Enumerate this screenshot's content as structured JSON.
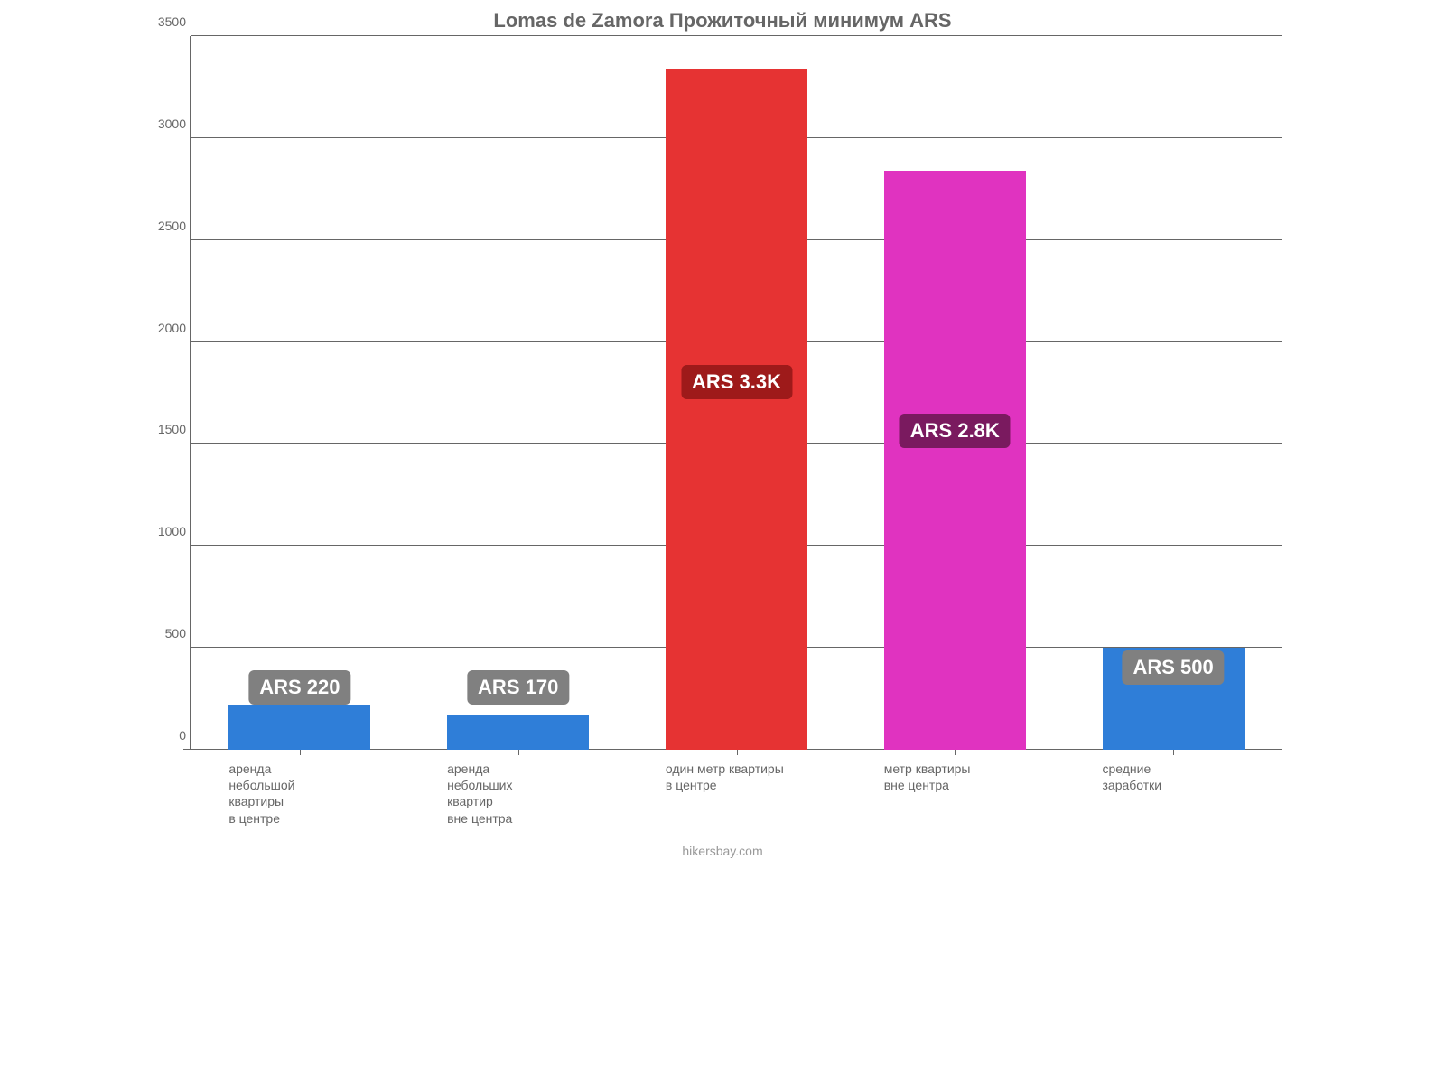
{
  "chart": {
    "type": "bar",
    "title": "Lomas de Zamora Прожиточный минимум ARS",
    "title_fontsize": 22,
    "title_color": "#666666",
    "background_color": "#ffffff",
    "attribution": "hikersbay.com",
    "attribution_fontsize": 14,
    "attribution_color": "#999999",
    "ylim": [
      0,
      3500
    ],
    "ytick_step": 500,
    "yticks": [
      0,
      500,
      1000,
      1500,
      2000,
      2500,
      3000,
      3500
    ],
    "tick_fontsize": 14,
    "tick_color": "#666666",
    "grid_color": "#666666",
    "axis_color": "#666666",
    "xlabel_fontsize": 14,
    "xlabel_color": "#666666",
    "value_label_fontsize": 22,
    "bar_width_pct": 13,
    "bar_gap_pct": 7,
    "bars": [
      {
        "category": "аренда небольшой квартиры в центре",
        "category_lines": [
          "аренда",
          "небольшой",
          "квартиры",
          "в центре"
        ],
        "value": 220,
        "value_label": "ARS 220",
        "bar_color": "#2f7ed8",
        "label_bg": "#808080",
        "label_color": "#ffffff",
        "label_value_pos": 300
      },
      {
        "category": "аренда небольших квартир вне центра",
        "category_lines": [
          "аренда",
          "небольших",
          "квартир",
          "вне центра"
        ],
        "value": 170,
        "value_label": "ARS 170",
        "bar_color": "#2f7ed8",
        "label_bg": "#808080",
        "label_color": "#ffffff",
        "label_value_pos": 300
      },
      {
        "category": "один метр квартиры в центре",
        "category_lines": [
          "один метр квартиры",
          "в центре"
        ],
        "value": 3340,
        "value_label": "ARS 3.3K",
        "bar_color": "#e63333",
        "label_bg": "#9e1a1a",
        "label_color": "#ffffff",
        "label_value_pos": 1800
      },
      {
        "category": "метр квартиры вне центра",
        "category_lines": [
          "метр квартиры",
          "вне центра"
        ],
        "value": 2840,
        "value_label": "ARS 2.8K",
        "bar_color": "#e033c0",
        "label_bg": "#7a1a5f",
        "label_color": "#ffffff",
        "label_value_pos": 1560
      },
      {
        "category": "средние заработки",
        "category_lines": [
          "средние",
          "заработки"
        ],
        "value": 500,
        "value_label": "ARS 500",
        "bar_color": "#2f7ed8",
        "label_bg": "#808080",
        "label_color": "#ffffff",
        "label_value_pos": 400
      }
    ]
  }
}
